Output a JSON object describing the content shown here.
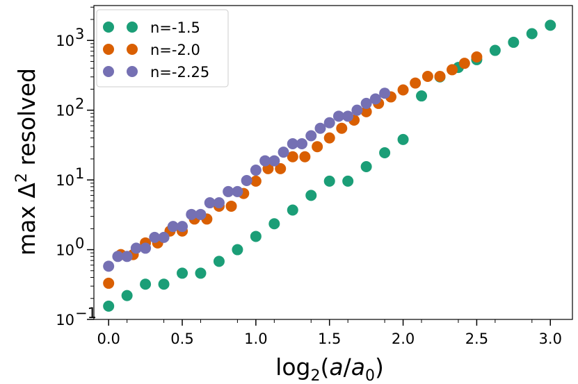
{
  "chart_data": {
    "type": "scatter",
    "xlabel": "log2(a/a0)",
    "ylabel": "max Δ² resolved",
    "yscale": "log",
    "xlim": [
      -0.1,
      3.15
    ],
    "ylim_exp": [
      -1,
      3.5
    ],
    "x_ticks": [
      "0.0",
      "0.5",
      "1.0",
      "1.5",
      "2.0",
      "2.5",
      "3.0"
    ],
    "x_tick_values": [
      0.0,
      0.5,
      1.0,
      1.5,
      2.0,
      2.5,
      3.0
    ],
    "y_ticks": [
      {
        "exp": -1,
        "base": "10",
        "sup": "−1"
      },
      {
        "exp": 0,
        "base": "10",
        "sup": "0"
      },
      {
        "exp": 1,
        "base": "10",
        "sup": "1"
      },
      {
        "exp": 2,
        "base": "10",
        "sup": "2"
      },
      {
        "exp": 3,
        "base": "10",
        "sup": "3"
      }
    ],
    "legend_position": "top-left",
    "series": [
      {
        "name": "n=-1.5",
        "color": "#1b9e77",
        "x": [
          0.0,
          0.125,
          0.25,
          0.375,
          0.5,
          0.625,
          0.75,
          0.875,
          1.0,
          1.125,
          1.25,
          1.375,
          1.5,
          1.625,
          1.75,
          1.875,
          2.0,
          2.125,
          2.25,
          2.375,
          2.5,
          2.625,
          2.75,
          2.875,
          3.0
        ],
        "y": [
          0.155,
          0.22,
          0.32,
          0.32,
          0.46,
          0.46,
          0.68,
          1.0,
          1.55,
          2.35,
          3.7,
          6.0,
          9.6,
          9.6,
          15.5,
          24.5,
          38.0,
          160,
          300,
          410,
          530,
          720,
          940,
          1250,
          1650
        ]
      },
      {
        "name": "n=-2.0",
        "color": "#d95f02",
        "x": [
          0.0,
          0.083,
          0.167,
          0.25,
          0.333,
          0.417,
          0.5,
          0.583,
          0.667,
          0.75,
          0.833,
          0.917,
          1.0,
          1.083,
          1.167,
          1.25,
          1.333,
          1.417,
          1.5,
          1.583,
          1.667,
          1.75,
          1.833,
          1.917,
          2.0,
          2.083,
          2.167,
          2.25,
          2.333,
          2.417,
          2.5
        ],
        "y": [
          0.33,
          0.85,
          0.85,
          1.25,
          1.25,
          1.85,
          1.85,
          2.75,
          2.75,
          4.2,
          4.2,
          6.4,
          9.6,
          14.5,
          14.5,
          21.5,
          21.5,
          30,
          40,
          55,
          72,
          95,
          125,
          155,
          195,
          245,
          305,
          305,
          380,
          470,
          580
        ]
      },
      {
        "name": "n=-2.25",
        "color": "#7570b3",
        "x": [
          0.0,
          0.0625,
          0.125,
          0.1875,
          0.25,
          0.3125,
          0.375,
          0.4375,
          0.5,
          0.5625,
          0.625,
          0.6875,
          0.75,
          0.8125,
          0.875,
          0.9375,
          1.0,
          1.0625,
          1.125,
          1.1875,
          1.25,
          1.3125,
          1.375,
          1.4375,
          1.5,
          1.5625,
          1.625,
          1.6875,
          1.75,
          1.8125,
          1.875
        ],
        "y": [
          0.58,
          0.8,
          0.8,
          1.05,
          1.05,
          1.5,
          1.5,
          2.15,
          2.15,
          3.2,
          3.2,
          4.7,
          4.7,
          6.8,
          6.8,
          9.8,
          13.8,
          18.8,
          18.8,
          25,
          33,
          33,
          43,
          55,
          66,
          82,
          82,
          100,
          125,
          145,
          175
        ]
      }
    ]
  }
}
